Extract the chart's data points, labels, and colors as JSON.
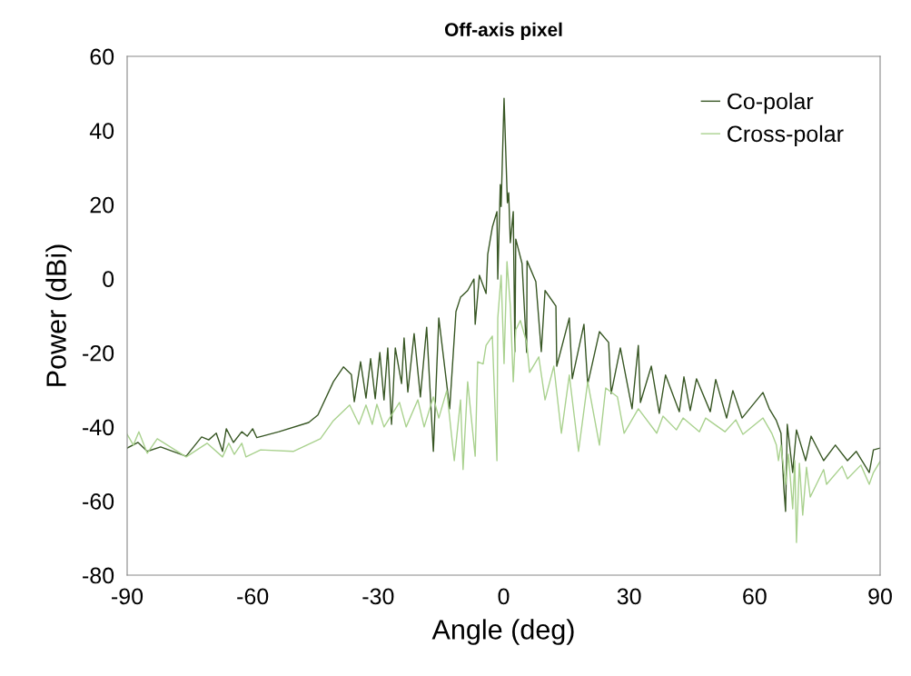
{
  "chart_data": {
    "type": "line",
    "title": "Off-axis pixel",
    "xlabel": "Angle (deg)",
    "ylabel": "Power (dBi)",
    "xlim": [
      -90,
      90
    ],
    "xticks": [
      -90,
      -60,
      -30,
      0,
      30,
      60,
      90
    ],
    "ylim": [
      -80,
      60
    ],
    "yticks": [
      -80,
      -60,
      -40,
      -20,
      0,
      20,
      40,
      60
    ],
    "grid": false,
    "legend": "top right",
    "marker": "none",
    "line_style": "solid",
    "series": [
      {
        "name": "Co-polar",
        "color": "#375623",
        "x": [
          -90,
          -87.4,
          -85.2,
          -82,
          -75.9,
          -72.2,
          -70.5,
          -68.7,
          -67.2,
          -66.3,
          -64.6,
          -62.6,
          -61.3,
          -60,
          -59,
          -53.7,
          -46.6,
          -44.4,
          -40.7,
          -38.3,
          -36.4,
          -35.7,
          -34.2,
          -32.9,
          -31.8,
          -30.7,
          -29.6,
          -28.6,
          -27.7,
          -26.8,
          -25.9,
          -24.4,
          -23.8,
          -22.9,
          -21.4,
          -19.9,
          -18.4,
          -16.8,
          -15.5,
          -12.9,
          -11.4,
          -10.3,
          -8.6,
          -7.1,
          -6.8,
          -5.8,
          -4.2,
          -3.8,
          -2.7,
          -1.6,
          -1.4,
          -0.8,
          -0.6,
          0.1,
          0.9,
          1.2,
          1.6,
          2.3,
          2.7,
          2.9,
          4.4,
          5.5,
          5.6,
          7.7,
          9.0,
          9.9,
          12.5,
          12.7,
          15.7,
          16.4,
          19.2,
          20.1,
          22.9,
          25.1,
          25.7,
          27.9,
          30.7,
          32.2,
          32.7,
          35.3,
          37.2,
          38.7,
          42.0,
          43.1,
          44.6,
          46.1,
          49.4,
          50.7,
          53.3,
          54.8,
          57.0,
          62.0,
          63.5,
          65.2,
          66.3,
          67.0,
          67.4,
          67.8,
          69.1,
          70.0,
          72.2,
          73.5,
          76.5,
          79.3,
          82.2,
          84.3,
          87.4,
          88.4,
          90
        ],
        "values": [
          -45.7,
          -44.2,
          -46.6,
          -45.4,
          -47.9,
          -42.7,
          -43.5,
          -41.7,
          -46.6,
          -40.5,
          -44.2,
          -41.3,
          -42.5,
          -40.5,
          -42.9,
          -41.3,
          -38.8,
          -36.8,
          -27.8,
          -23.8,
          -25.9,
          -33.2,
          -22.4,
          -32.2,
          -21.6,
          -32.4,
          -19.9,
          -32.7,
          -18.7,
          -39.3,
          -18.7,
          -28.3,
          -16.0,
          -30.6,
          -14.8,
          -31.9,
          -13.1,
          -46.6,
          -10.6,
          -35.1,
          -8.9,
          -5.0,
          -3.2,
          -0.1,
          -12.3,
          0.9,
          -4.0,
          6.6,
          13.9,
          18.1,
          -0.1,
          25.4,
          19.5,
          48.7,
          20.5,
          23.2,
          9.7,
          18.1,
          -19.7,
          10.7,
          4.1,
          -19.9,
          4.8,
          -0.8,
          -19.7,
          -3.2,
          -7.4,
          -23.6,
          -10.6,
          -27.0,
          -12.3,
          -28.5,
          -14.3,
          -17.2,
          -31.0,
          -18.7,
          -35.1,
          -18.0,
          -33.4,
          -23.6,
          -36.3,
          -26.0,
          -35.9,
          -26.5,
          -35.6,
          -27.0,
          -35.9,
          -27.2,
          -37.6,
          -30.2,
          -37.6,
          -30.7,
          -35.1,
          -38.3,
          -41.7,
          -56.7,
          -62.8,
          -39.3,
          -52.3,
          -40.8,
          -49.1,
          -42.5,
          -49.1,
          -44.9,
          -49.1,
          -46.6,
          -52.3,
          -46.2,
          -45.7
        ]
      },
      {
        "name": "Cross-polar",
        "color": "#a9d18e",
        "x": [
          -90,
          -88.5,
          -87.2,
          -85.2,
          -82.8,
          -75.9,
          -70.9,
          -67.2,
          -65.7,
          -64.4,
          -62.6,
          -61.6,
          -58.1,
          -50.3,
          -43.8,
          -40.7,
          -36.8,
          -34.6,
          -32.9,
          -31.4,
          -30.3,
          -28.6,
          -24.9,
          -23.3,
          -20.5,
          -19,
          -16.8,
          -15.5,
          -13.6,
          -11.8,
          -10.3,
          -9.7,
          -8.6,
          -6.8,
          -6.2,
          -4.9,
          -4.2,
          -2.7,
          -1.6,
          -1.4,
          -0.6,
          0.1,
          0.8,
          1.6,
          2.3,
          2.9,
          4.0,
          5.5,
          6.2,
          8.4,
          9.9,
          12.0,
          13.8,
          15.7,
          17.9,
          20.1,
          22.9,
          24.4,
          27.2,
          28.8,
          32.2,
          36.6,
          38.1,
          41.3,
          42.9,
          46.8,
          48.3,
          52.9,
          55.5,
          57.2,
          62.0,
          64.1,
          65.2,
          65.7,
          66.3,
          67.4,
          68.1,
          69.1,
          69.6,
          70.0,
          70.7,
          71.5,
          72.4,
          73.3,
          76.5,
          77.2,
          80.9,
          82.2,
          85.4,
          87.4,
          88.4,
          90
        ],
        "values": [
          -42.0,
          -44.9,
          -41.3,
          -47.1,
          -43.2,
          -48.1,
          -44.4,
          -48.1,
          -44.4,
          -47.4,
          -44.4,
          -48.1,
          -46.2,
          -46.6,
          -43.2,
          -38.3,
          -34.1,
          -39.3,
          -34.1,
          -39.3,
          -33.9,
          -40.0,
          -33.4,
          -40.0,
          -32.7,
          -40.0,
          -31.9,
          -37.6,
          -30.2,
          -49.1,
          -32.7,
          -51.5,
          -27.8,
          -47.9,
          -22.4,
          -23.0,
          -18.0,
          -15.5,
          -49.1,
          -10.6,
          0.9,
          -22.9,
          4.6,
          -7.4,
          -27.8,
          -13.8,
          -11.3,
          -17.2,
          -25.3,
          -21.1,
          -32.7,
          -23.6,
          -41.7,
          -26.0,
          -46.6,
          -27.8,
          -44.9,
          -29.5,
          -31.9,
          -41.7,
          -35.1,
          -41.7,
          -37.1,
          -40.8,
          -37.6,
          -41.3,
          -37.6,
          -41.3,
          -38.1,
          -42.0,
          -37.6,
          -41.7,
          -44.9,
          -49.1,
          -44.9,
          -55.5,
          -47.4,
          -62.1,
          -49.1,
          -71.2,
          -49.8,
          -63.8,
          -50.9,
          -58.9,
          -51.5,
          -55.5,
          -50.6,
          -54.0,
          -50.3,
          -55.5,
          -52.3,
          -49.3
        ]
      }
    ]
  }
}
